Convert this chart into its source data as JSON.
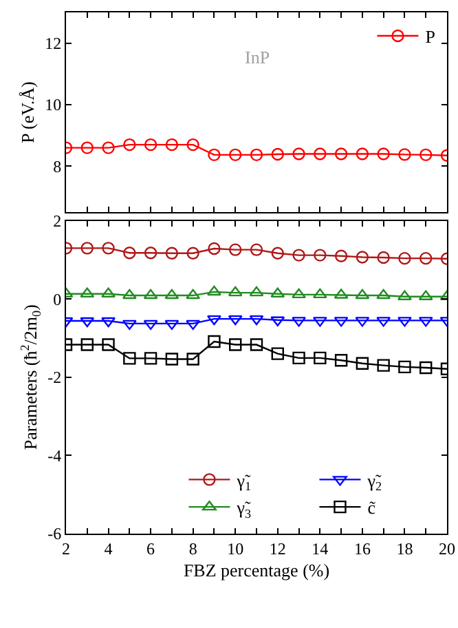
{
  "chart_data": [
    {
      "type": "line",
      "ylabel": "P (eV.Å)",
      "annotations": [
        "InP"
      ],
      "x": [
        2,
        3,
        4,
        5,
        6,
        7,
        8,
        9,
        10,
        11,
        12,
        13,
        14,
        15,
        16,
        17,
        18,
        19,
        20
      ],
      "series": [
        {
          "name": "P",
          "color": "#ff0000",
          "marker": "circle",
          "values": [
            8.6,
            8.6,
            8.6,
            8.7,
            8.7,
            8.7,
            8.7,
            8.37,
            8.37,
            8.37,
            8.39,
            8.4,
            8.4,
            8.4,
            8.4,
            8.4,
            8.38,
            8.37,
            8.35
          ]
        }
      ],
      "xlim": [
        2,
        20
      ],
      "xticks": [
        2,
        {
          "value": 3,
          "label": null
        },
        4,
        {
          "value": 5,
          "label": null
        },
        6,
        {
          "value": 7,
          "label": null
        },
        8,
        {
          "value": 9,
          "label": null
        },
        10,
        {
          "value": 11,
          "label": null
        },
        12,
        {
          "value": 13,
          "label": null
        },
        14,
        {
          "value": 15,
          "label": null
        },
        16,
        {
          "value": 17,
          "label": null
        },
        18,
        {
          "value": 19,
          "label": null
        },
        20
      ],
      "ylim": [
        6.5,
        13
      ],
      "yticks": [
        8,
        10,
        12
      ],
      "tick_labels": "y",
      "legend": "top right"
    },
    {
      "type": "line",
      "xlabel": "FBZ percentage (%)",
      "ylabel": "Parameters (ħ$^{2}$/2m$_{0}$)",
      "x": [
        2,
        3,
        4,
        5,
        6,
        7,
        8,
        9,
        10,
        11,
        12,
        13,
        14,
        15,
        16,
        17,
        18,
        19,
        20
      ],
      "series": [
        {
          "name": "γ̃$_{1}$",
          "color": "#b01818",
          "marker": "circle",
          "values": [
            1.3,
            1.3,
            1.3,
            1.18,
            1.18,
            1.17,
            1.17,
            1.29,
            1.26,
            1.26,
            1.17,
            1.12,
            1.12,
            1.1,
            1.07,
            1.06,
            1.04,
            1.04,
            1.03
          ]
        },
        {
          "name": "γ̃$_{2}$",
          "color": "#0000ff",
          "marker": "triangle-down",
          "values": [
            -0.56,
            -0.56,
            -0.56,
            -0.63,
            -0.63,
            -0.63,
            -0.63,
            -0.51,
            -0.51,
            -0.51,
            -0.54,
            -0.55,
            -0.55,
            -0.55,
            -0.55,
            -0.55,
            -0.55,
            -0.55,
            -0.55
          ]
        },
        {
          "name": "γ̃$_{3}$",
          "color": "#228b22",
          "marker": "triangle",
          "values": [
            0.13,
            0.13,
            0.13,
            0.09,
            0.09,
            0.09,
            0.09,
            0.18,
            0.16,
            0.16,
            0.13,
            0.11,
            0.11,
            0.1,
            0.09,
            0.09,
            0.06,
            0.06,
            0.06
          ]
        },
        {
          "name": "c̃",
          "color": "#000000",
          "marker": "square",
          "values": [
            -1.17,
            -1.17,
            -1.17,
            -1.52,
            -1.52,
            -1.54,
            -1.54,
            -1.09,
            -1.17,
            -1.17,
            -1.4,
            -1.51,
            -1.51,
            -1.57,
            -1.65,
            -1.7,
            -1.74,
            -1.76,
            -1.79
          ]
        }
      ],
      "xlim": [
        2,
        20
      ],
      "xticks": [
        2,
        {
          "value": 3,
          "label": null
        },
        4,
        {
          "value": 5,
          "label": null
        },
        6,
        {
          "value": 7,
          "label": null
        },
        8,
        {
          "value": 9,
          "label": null
        },
        10,
        {
          "value": 11,
          "label": null
        },
        12,
        {
          "value": 13,
          "label": null
        },
        14,
        {
          "value": 15,
          "label": null
        },
        16,
        {
          "value": 17,
          "label": null
        },
        18,
        {
          "value": 19,
          "label": null
        },
        20
      ],
      "ylim": [
        -6,
        2
      ],
      "yticks": [
        2,
        0,
        -2,
        -4,
        -6
      ],
      "legend": "bottom right"
    }
  ]
}
